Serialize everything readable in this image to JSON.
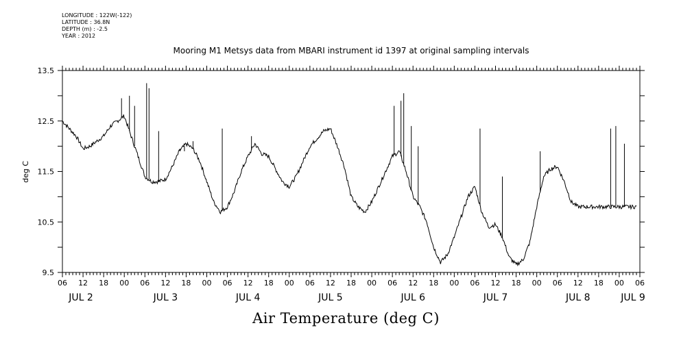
{
  "meta": {
    "longitude": "LONGITUDE : 122W(-122)",
    "latitude": "LATITUDE : 36.8N",
    "depth": "DEPTH (m) : -2.5",
    "year": "YEAR : 2012"
  },
  "chart_data": {
    "type": "line",
    "title": "Mooring M1 Metsys data from MBARI instrument id 1397 at original sampling intervals",
    "xlabel": "Air Temperature (deg C)",
    "ylabel": "deg C",
    "xlim": [
      "JUL 2 06:00",
      "JUL 9 06:00"
    ],
    "ylim": [
      9.5,
      13.5
    ],
    "yticks": [
      "9.5",
      "10.5",
      "11.5",
      "12.5",
      "13.5"
    ],
    "hour_tick_labels": [
      "06",
      "12",
      "18",
      "00",
      "06",
      "12",
      "18",
      "00",
      "06",
      "12",
      "18",
      "00",
      "06",
      "12",
      "18",
      "00",
      "06",
      "12",
      "18",
      "00",
      "06",
      "12",
      "18",
      "00",
      "06",
      "12",
      "18",
      "00",
      "06"
    ],
    "day_labels": [
      "JUL 2",
      "JUL 3",
      "JUL 4",
      "JUL 5",
      "JUL 6",
      "JUL 7",
      "JUL 8",
      "JUL 9"
    ],
    "grid": false,
    "series": [
      {
        "x_hours_from_JUL2_06": [
          0,
          2,
          4,
          6,
          8,
          10,
          12,
          14,
          16,
          18,
          20,
          22,
          24,
          26,
          28,
          30,
          32,
          34,
          36,
          38,
          40,
          42,
          44,
          46,
          48,
          50,
          52,
          54,
          56,
          58,
          60,
          62,
          64,
          66,
          68,
          70,
          72,
          74,
          76,
          78,
          80,
          82,
          84,
          86,
          88,
          90,
          92,
          94,
          96,
          98,
          100,
          102,
          104,
          106,
          108,
          110,
          112,
          114,
          116,
          118,
          120,
          122,
          124,
          126,
          128,
          130,
          132,
          134,
          136,
          138,
          140,
          142,
          144,
          146,
          148,
          150,
          152,
          154,
          156,
          158,
          160,
          162,
          164,
          166,
          168
        ],
        "values": [
          12.5,
          12.35,
          12.2,
          11.95,
          12.0,
          12.1,
          12.2,
          12.4,
          12.5,
          12.6,
          12.2,
          11.8,
          11.4,
          11.3,
          11.3,
          11.35,
          11.6,
          11.9,
          12.05,
          11.95,
          11.7,
          11.3,
          10.9,
          10.7,
          10.8,
          11.1,
          11.5,
          11.8,
          12.05,
          11.85,
          11.8,
          11.55,
          11.3,
          11.2,
          11.4,
          11.7,
          12.0,
          12.15,
          12.3,
          12.35,
          12.0,
          11.6,
          11.0,
          10.8,
          10.7,
          10.9,
          11.2,
          11.5,
          11.8,
          11.9,
          11.5,
          11.0,
          10.8,
          10.5,
          10.0,
          9.7,
          9.85,
          10.2,
          10.6,
          11.0,
          11.2,
          10.7,
          10.4,
          10.45,
          10.2,
          9.8,
          9.65,
          9.75,
          10.1,
          10.8,
          11.4,
          11.55,
          11.6,
          11.3,
          10.9,
          10.8,
          10.8,
          10.8,
          10.8,
          10.8,
          10.8,
          10.8,
          10.8,
          10.8,
          10.8
        ],
        "spikes": [
          {
            "x": 17.2,
            "y": 12.95
          },
          {
            "x": 19.5,
            "y": 13.0
          },
          {
            "x": 21.0,
            "y": 12.8
          },
          {
            "x": 24.5,
            "y": 13.25
          },
          {
            "x": 25.2,
            "y": 13.15
          },
          {
            "x": 28.0,
            "y": 12.3
          },
          {
            "x": 34.2,
            "y": 11.95
          },
          {
            "x": 35.5,
            "y": 11.9
          },
          {
            "x": 38.0,
            "y": 12.1
          },
          {
            "x": 46.5,
            "y": 12.35
          },
          {
            "x": 55.0,
            "y": 12.2
          },
          {
            "x": 96.5,
            "y": 12.8
          },
          {
            "x": 98.5,
            "y": 12.9
          },
          {
            "x": 99.3,
            "y": 13.05
          },
          {
            "x": 101.5,
            "y": 12.4
          },
          {
            "x": 103.5,
            "y": 12.0
          },
          {
            "x": 121.5,
            "y": 12.35
          },
          {
            "x": 128.0,
            "y": 11.4
          },
          {
            "x": 139.0,
            "y": 11.9
          },
          {
            "x": 159.5,
            "y": 12.35
          },
          {
            "x": 161.0,
            "y": 12.4
          },
          {
            "x": 163.5,
            "y": 12.05
          }
        ]
      }
    ]
  }
}
